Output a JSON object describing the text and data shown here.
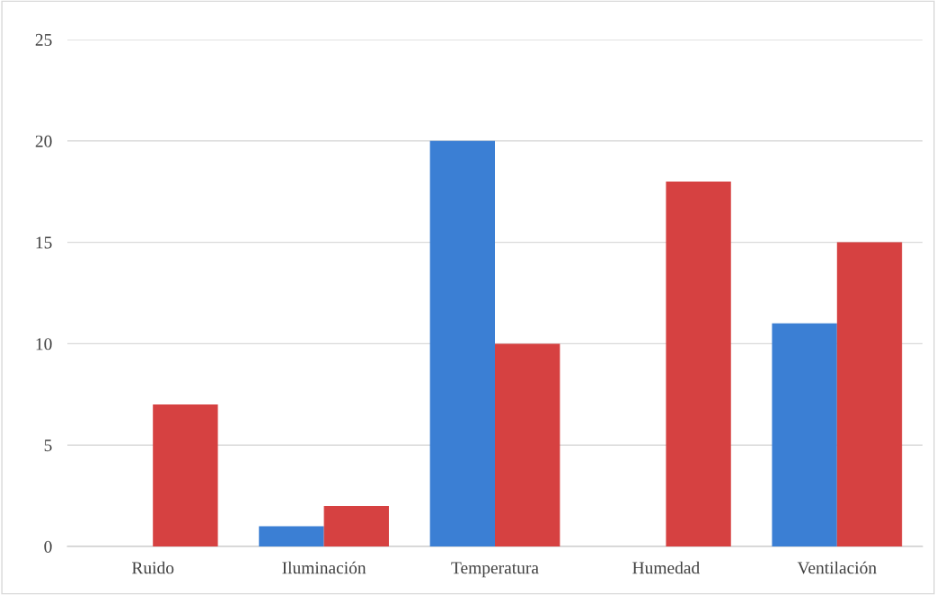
{
  "chart_data": {
    "type": "bar",
    "categories": [
      "Ruido",
      "Iluminación",
      "Temperatura",
      "Humedad",
      "Ventilación"
    ],
    "series": [
      {
        "color": "#3b7fd4",
        "values": [
          0,
          1,
          20,
          0,
          11
        ]
      },
      {
        "color": "#d64141",
        "values": [
          7,
          2,
          10,
          18,
          15
        ]
      }
    ],
    "ylim": [
      0,
      25
    ],
    "yticks": [
      0,
      5,
      10,
      15,
      20,
      25
    ],
    "grid": "y"
  }
}
